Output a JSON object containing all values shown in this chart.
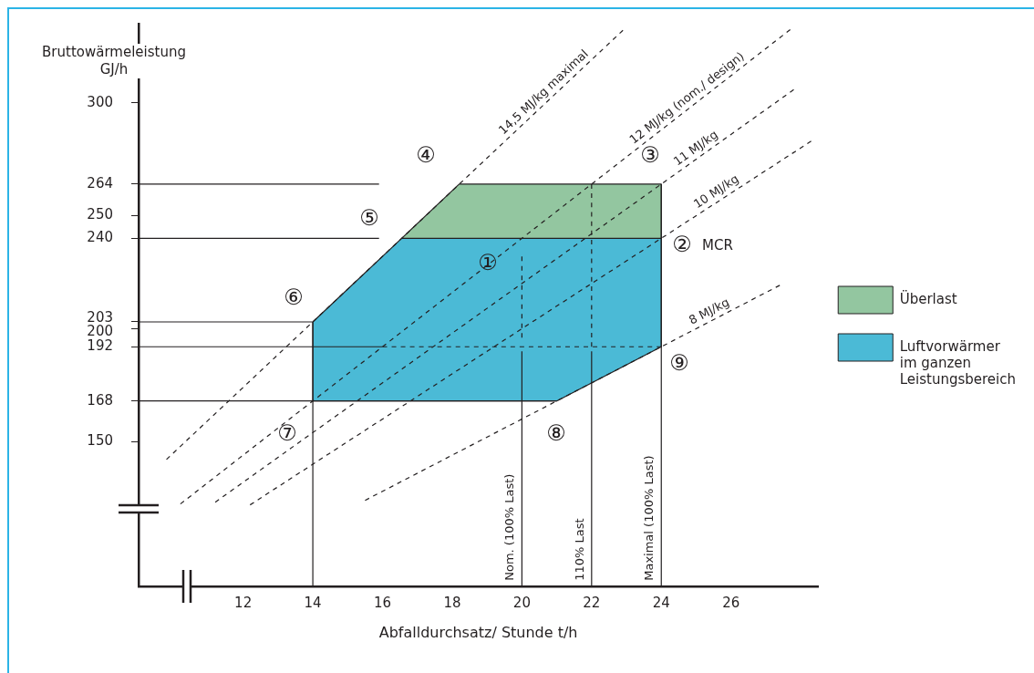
{
  "chart_data": {
    "type": "line",
    "xlabel": "Abfalldurchsatz/ Stunde t/h",
    "ylabel": "Bruttowärmeleistung GJ/h",
    "xlim": [
      9,
      28.5
    ],
    "ylim": [
      86,
      335
    ],
    "xticks": [
      12,
      14,
      16,
      18,
      20,
      22,
      24,
      26
    ],
    "yticks": [
      150,
      168,
      192,
      200,
      203,
      240,
      250,
      264,
      300
    ],
    "grid": false,
    "legend": "right",
    "marker": "none",
    "series": [
      {
        "name": "Überlast",
        "type": "area",
        "color": "#93c6a0",
        "x": [
          16.55,
          18.2,
          24,
          24,
          16.55
        ],
        "values": [
          240,
          264,
          264,
          240,
          240
        ]
      },
      {
        "name": "Luftvorwärmer im ganzen Leistungsbereich",
        "type": "area",
        "color": "#4bbad6",
        "x": [
          14,
          16.55,
          24,
          24,
          21,
          14,
          14
        ],
        "values": [
          203,
          240,
          240,
          192,
          168,
          168,
          203
        ]
      },
      {
        "name": "14,5 MJ/kg maximal",
        "color": "#231f20",
        "line_style": "dashed",
        "x": [
          9.8,
          22.9
        ],
        "values": [
          142.1,
          332.1
        ]
      },
      {
        "name": "12 MJ/kg (nom./ design)",
        "color": "#231f20",
        "line_style": "dashed",
        "x": [
          10.2,
          27.7
        ],
        "values": [
          122.4,
          332.4
        ]
      },
      {
        "name": "11 MJ/kg",
        "color": "#231f20",
        "line_style": "dashed",
        "x": [
          11.2,
          27.8
        ],
        "values": [
          123.2,
          305.8
        ]
      },
      {
        "name": "10 MJ/kg",
        "color": "#231f20",
        "line_style": "dashed",
        "x": [
          12.2,
          28.3
        ],
        "values": [
          122,
          283
        ]
      },
      {
        "name": "8 MJ/kg",
        "color": "#231f20",
        "line_style": "dashed",
        "x": [
          15.5,
          27.4
        ],
        "values": [
          124,
          219.2
        ]
      },
      {
        "color": "#231f20",
        "x": [
          9,
          15.9
        ],
        "values": [
          264,
          264
        ]
      },
      {
        "color": "#231f20",
        "x": [
          9,
          15.9
        ],
        "values": [
          240,
          240
        ]
      },
      {
        "color": "#231f20",
        "x": [
          9,
          14
        ],
        "values": [
          203,
          203
        ]
      },
      {
        "color": "#231f20",
        "x": [
          9,
          16
        ],
        "values": [
          192,
          192
        ]
      },
      {
        "color": "#231f20",
        "line_style": "dashed",
        "x": [
          16,
          24
        ],
        "values": [
          192,
          192
        ]
      },
      {
        "color": "#231f20",
        "x": [
          9,
          21
        ],
        "values": [
          168,
          168
        ]
      },
      {
        "color": "#231f20",
        "x": [
          14,
          14
        ],
        "values": [
          86,
          203
        ]
      },
      {
        "name": "Nom. (100% Last)",
        "color": "#231f20",
        "x": [
          20,
          20
        ],
        "values": [
          86,
          190
        ]
      },
      {
        "color": "#231f20",
        "line_style": "dashed",
        "x": [
          20,
          20
        ],
        "values": [
          196,
          232
        ]
      },
      {
        "name": "110% Last",
        "color": "#231f20",
        "x": [
          22,
          22
        ],
        "values": [
          86,
          190
        ]
      },
      {
        "color": "#231f20",
        "line_style": "dashed",
        "x": [
          22,
          22
        ],
        "values": [
          192,
          264
        ]
      },
      {
        "name": "Maximal (100% Last)",
        "color": "#231f20",
        "x": [
          24,
          24
        ],
        "values": [
          86,
          264
        ]
      }
    ],
    "annotations": [
      "①",
      "②",
      "MCR",
      "③",
      "④",
      "⑤",
      "⑥",
      "⑦",
      "⑧",
      "⑨"
    ]
  }
}
